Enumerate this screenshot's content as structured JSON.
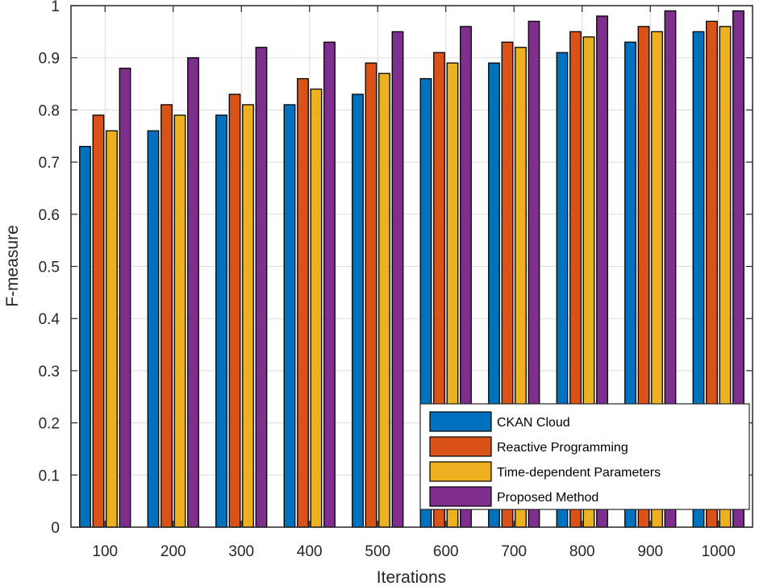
{
  "chart_data": {
    "type": "bar",
    "title": "",
    "xlabel": "Iterations",
    "ylabel": "F-measure",
    "categories": [
      "100",
      "200",
      "300",
      "400",
      "500",
      "600",
      "700",
      "800",
      "900",
      "1000"
    ],
    "ylim": [
      0,
      1
    ],
    "yticks": [
      "0",
      "0.1",
      "0.2",
      "0.3",
      "0.4",
      "0.5",
      "0.6",
      "0.7",
      "0.8",
      "0.9",
      "1"
    ],
    "grid": true,
    "legend_position": "bottom-right",
    "series": [
      {
        "name": "CKAN Cloud",
        "color": "#0072BD",
        "values": [
          0.73,
          0.76,
          0.79,
          0.81,
          0.83,
          0.86,
          0.89,
          0.91,
          0.93,
          0.95
        ]
      },
      {
        "name": "Reactive Programming",
        "color": "#D95319",
        "values": [
          0.79,
          0.81,
          0.83,
          0.86,
          0.89,
          0.91,
          0.93,
          0.95,
          0.96,
          0.97
        ]
      },
      {
        "name": "Time-dependent Parameters",
        "color": "#EDB120",
        "values": [
          0.76,
          0.79,
          0.81,
          0.84,
          0.87,
          0.89,
          0.92,
          0.94,
          0.95,
          0.96
        ]
      },
      {
        "name": "Proposed Method",
        "color": "#7E2F8E",
        "values": [
          0.88,
          0.9,
          0.92,
          0.93,
          0.95,
          0.96,
          0.97,
          0.98,
          0.99,
          0.99
        ]
      }
    ]
  }
}
